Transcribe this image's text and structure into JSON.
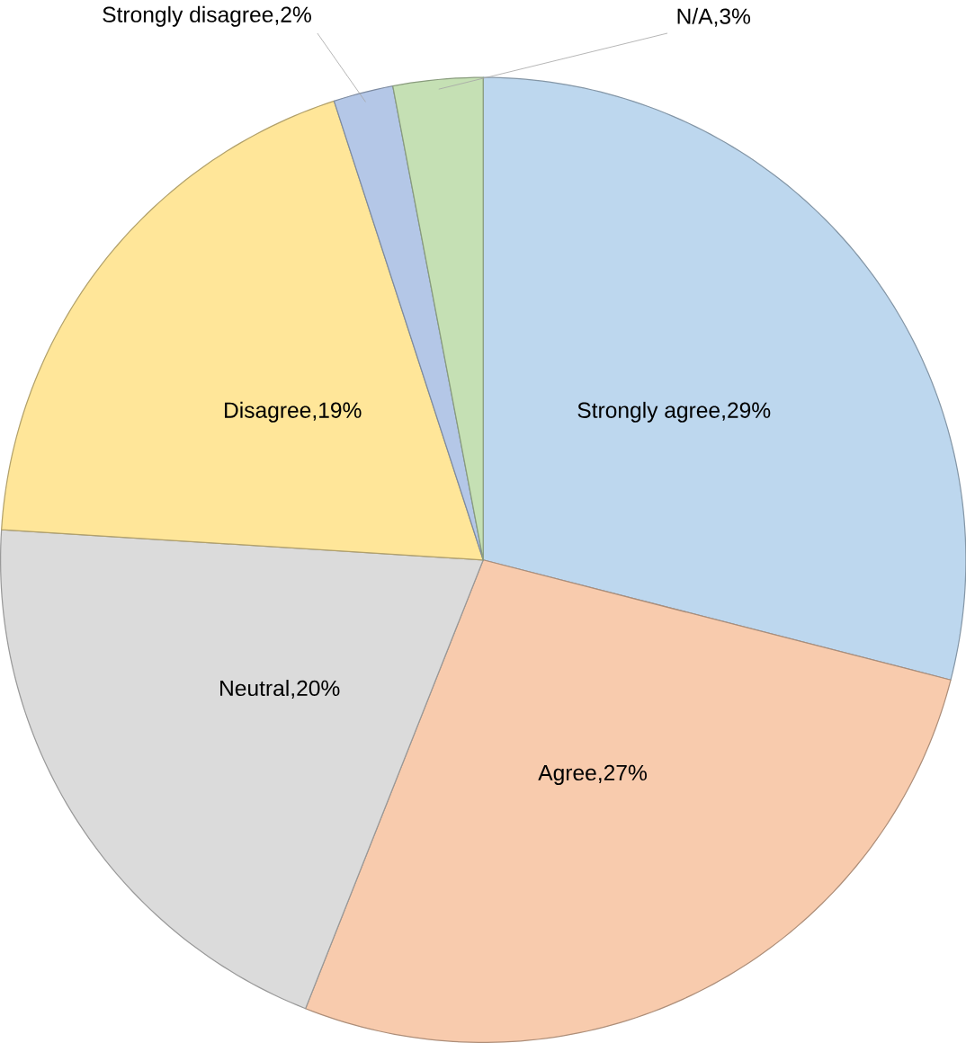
{
  "chart_data": {
    "type": "pie",
    "categories": [
      "Strongly agree",
      "Agree",
      "Neutral",
      "Disagree",
      "Strongly disagree",
      "N/A"
    ],
    "values": [
      29,
      27,
      20,
      19,
      2,
      3
    ],
    "colors": [
      "#bdd7ee",
      "#f8cbad",
      "#dbdbdb",
      "#ffe699",
      "#b4c7e7",
      "#c5e0b4"
    ],
    "value_labels": [
      ",29%",
      ",27%",
      ",20%",
      ",19%",
      ",2%",
      ",3%"
    ]
  }
}
